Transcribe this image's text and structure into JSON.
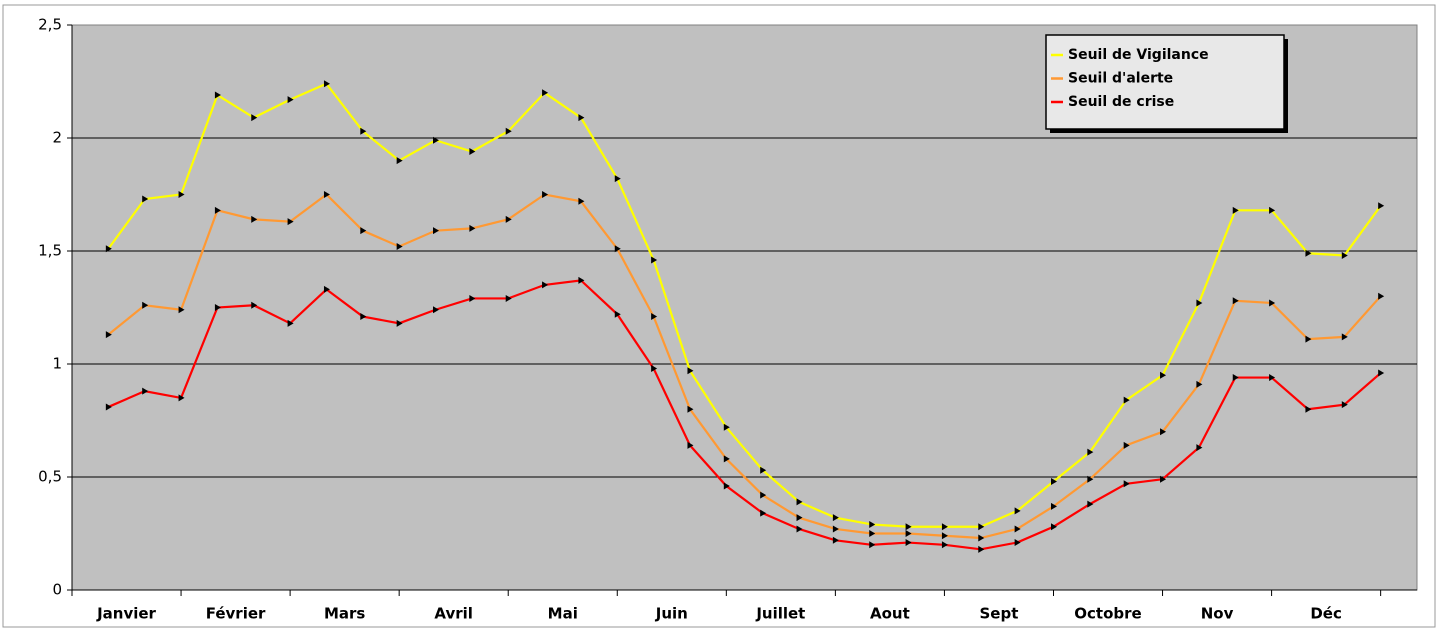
{
  "chart_data": {
    "type": "line",
    "categories": [
      "Janvier",
      "Février",
      "Mars",
      "Avril",
      "Mai",
      "Juin",
      "Juillet",
      "Aout",
      "Sept",
      "Octobre",
      "Nov",
      "Déc"
    ],
    "series": [
      {
        "name": "Seuil de Vigilance",
        "color": "#ffff00",
        "values": [
          [
            1.51,
            1.73,
            1.75
          ],
          [
            2.19,
            2.09,
            2.17
          ],
          [
            2.24,
            2.03,
            1.9
          ],
          [
            1.99,
            1.94,
            2.03
          ],
          [
            2.2,
            2.09,
            1.82
          ],
          [
            1.46,
            0.97,
            0.72
          ],
          [
            0.53,
            0.39,
            0.32
          ],
          [
            0.29,
            0.28,
            0.28
          ],
          [
            0.28,
            0.35,
            0.48
          ],
          [
            0.61,
            0.84,
            0.95
          ],
          [
            1.27,
            1.68,
            1.68
          ],
          [
            1.49,
            1.48,
            1.7
          ]
        ]
      },
      {
        "name": "Seuil d'alerte",
        "color": "#ff9933",
        "values": [
          [
            1.13,
            1.26,
            1.24
          ],
          [
            1.68,
            1.64,
            1.63
          ],
          [
            1.75,
            1.59,
            1.52
          ],
          [
            1.59,
            1.6,
            1.64
          ],
          [
            1.75,
            1.72,
            1.51
          ],
          [
            1.21,
            0.8,
            0.58
          ],
          [
            0.42,
            0.32,
            0.27
          ],
          [
            0.25,
            0.25,
            0.24
          ],
          [
            0.23,
            0.27,
            0.37
          ],
          [
            0.49,
            0.64,
            0.7
          ],
          [
            0.91,
            1.28,
            1.27
          ],
          [
            1.11,
            1.12,
            1.3
          ]
        ]
      },
      {
        "name": "Seuil de crise",
        "color": "#ff0000",
        "values": [
          [
            0.81,
            0.88,
            0.85
          ],
          [
            1.25,
            1.26,
            1.18
          ],
          [
            1.33,
            1.21,
            1.18
          ],
          [
            1.24,
            1.29,
            1.29
          ],
          [
            1.35,
            1.37,
            1.22
          ],
          [
            0.98,
            0.64,
            0.46
          ],
          [
            0.34,
            0.27,
            0.22
          ],
          [
            0.2,
            0.21,
            0.2
          ],
          [
            0.18,
            0.21,
            0.28
          ],
          [
            0.38,
            0.47,
            0.49
          ],
          [
            0.63,
            0.94,
            0.94
          ],
          [
            0.8,
            0.82,
            0.96
          ]
        ]
      }
    ],
    "ylim": [
      0,
      2.5
    ],
    "yticks": [
      0,
      {
        "value": 0.5,
        "label": "0,5"
      },
      1,
      {
        "value": 1.5,
        "label": "1,5"
      },
      2,
      {
        "value": 2.5,
        "label": "2,5"
      }
    ],
    "grid": true,
    "legend_position": "top-right"
  }
}
